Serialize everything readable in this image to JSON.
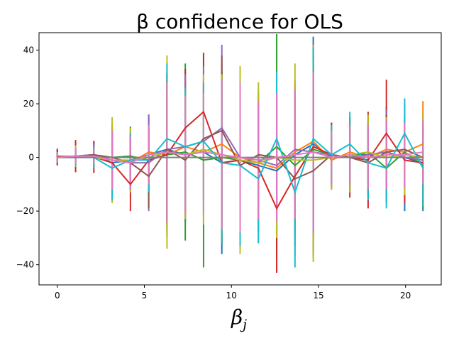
{
  "chart_data": {
    "type": "line",
    "title": "β confidence for OLS",
    "xlabel": "β",
    "xlabel_sub": "j",
    "ylabel": "",
    "xlim": [
      -1.05,
      22.05
    ],
    "ylim": [
      -47.5,
      46.5
    ],
    "x_ticks": [
      0,
      5,
      10,
      15,
      20
    ],
    "y_ticks": [
      -40,
      -20,
      0,
      20,
      40
    ],
    "grid": false,
    "x": [
      0,
      1.05,
      2.1,
      3.15,
      4.2,
      5.25,
      6.3,
      7.35,
      8.4,
      9.45,
      10.5,
      11.55,
      12.6,
      13.65,
      14.7,
      15.75,
      16.8,
      17.85,
      18.9,
      19.95,
      21.0
    ],
    "series": [
      {
        "color": "#1f77b4",
        "values": [
          0,
          0.5,
          1,
          -2,
          -1,
          1,
          3,
          1,
          2,
          -2,
          -1,
          -3,
          -5,
          1,
          5,
          0,
          1,
          1,
          2,
          0,
          -2
        ],
        "ci": [
          3,
          5,
          5,
          12,
          11,
          15,
          28,
          25,
          24,
          34,
          32,
          24,
          28,
          25,
          40,
          12,
          14,
          15,
          17,
          20,
          18
        ]
      },
      {
        "color": "#ff7f0e",
        "values": [
          0.5,
          0.3,
          0.5,
          -1,
          -2,
          2,
          1,
          4,
          2,
          5,
          0,
          -2,
          -4,
          2,
          6,
          -1,
          2,
          0,
          3,
          2,
          5
        ],
        "ci": [
          2,
          4,
          4,
          14,
          10,
          13,
          30,
          24,
          26,
          30,
          34,
          26,
          26,
          27,
          36,
          11,
          13,
          14,
          16,
          14,
          16
        ]
      },
      {
        "color": "#2ca02c",
        "values": [
          0,
          0,
          0.5,
          0,
          0.5,
          -1,
          1,
          2,
          -1,
          0,
          -1,
          -2,
          4,
          -3,
          3,
          1,
          0,
          2,
          -4,
          2,
          -3
        ],
        "ci": [
          2,
          3,
          3,
          13,
          11,
          12,
          31,
          33,
          40,
          32,
          31,
          22,
          42,
          25,
          38,
          12,
          12,
          12,
          13,
          13,
          16
        ]
      },
      {
        "color": "#d62728",
        "values": [
          0.3,
          0.5,
          0.2,
          -2,
          -10,
          -1,
          1,
          11,
          17,
          -2,
          -1,
          -4,
          -19,
          -7,
          4,
          1,
          0,
          -1,
          9,
          -1,
          -2
        ],
        "ci": [
          3,
          6,
          6,
          12,
          10,
          12,
          28,
          22,
          22,
          30,
          30,
          24,
          24,
          26,
          34,
          12,
          15,
          18,
          20,
          16,
          15
        ]
      },
      {
        "color": "#9467bd",
        "values": [
          0,
          0.5,
          1,
          -1,
          -2,
          -2,
          3,
          4,
          6,
          11,
          0,
          -1,
          -3,
          3,
          2,
          1,
          0,
          1,
          2,
          0,
          -1
        ],
        "ci": [
          2,
          4,
          4,
          12,
          10,
          18,
          28,
          27,
          28,
          31,
          30,
          26,
          27,
          24,
          33,
          11,
          12,
          13,
          16,
          14,
          15
        ]
      },
      {
        "color": "#8c564b",
        "values": [
          0,
          0.3,
          1,
          0,
          -2,
          -7,
          3,
          -1,
          7,
          10,
          -3,
          1,
          0,
          -8,
          -5,
          1,
          0,
          -2,
          2,
          3,
          0
        ],
        "ci": [
          2,
          3,
          3,
          12,
          10,
          12,
          28,
          22,
          22,
          28,
          30,
          22,
          24,
          22,
          32,
          11,
          12,
          13,
          14,
          13,
          12
        ]
      },
      {
        "color": "#bcbd22",
        "values": [
          0,
          0.5,
          0,
          -1,
          -1,
          0,
          2,
          1,
          3,
          1,
          -1,
          -2,
          0,
          -1,
          -1,
          0,
          1,
          2,
          0,
          1,
          0
        ],
        "ci": [
          2,
          4,
          4,
          16,
          12,
          12,
          36,
          24,
          28,
          30,
          35,
          30,
          30,
          36,
          38,
          12,
          14,
          14,
          15,
          15,
          16
        ]
      },
      {
        "color": "#17becf",
        "values": [
          0,
          0,
          0,
          -4,
          -1,
          -1,
          7,
          4,
          6,
          -2,
          -3,
          -8,
          7,
          -13,
          7,
          1,
          5,
          -2,
          -4,
          9,
          -4
        ],
        "ci": [
          2,
          3,
          4,
          12,
          10,
          12,
          28,
          22,
          22,
          30,
          30,
          24,
          25,
          28,
          34,
          11,
          12,
          14,
          15,
          13,
          14
        ]
      },
      {
        "color": "#7f7f7f",
        "values": [
          0,
          0,
          0,
          0,
          0,
          0,
          0,
          0,
          0,
          0,
          0,
          0,
          0,
          0,
          0,
          0,
          0,
          0,
          0,
          0,
          0
        ],
        "ci": [
          1,
          1,
          1,
          1,
          1,
          1,
          1,
          1,
          1,
          1,
          1,
          1,
          1,
          1,
          1,
          1,
          1,
          1,
          1,
          1,
          1
        ]
      },
      {
        "color": "#e377c2",
        "values": [
          0,
          0.5,
          0.5,
          -1,
          -2,
          1,
          2,
          1,
          2,
          1,
          0,
          -1,
          0,
          1,
          2,
          0,
          1,
          0,
          1,
          1,
          2
        ],
        "ci": [
          2,
          3,
          3,
          11,
          10,
          11,
          26,
          22,
          22,
          28,
          28,
          22,
          24,
          24,
          30,
          10,
          11,
          12,
          13,
          12,
          12
        ]
      }
    ]
  }
}
